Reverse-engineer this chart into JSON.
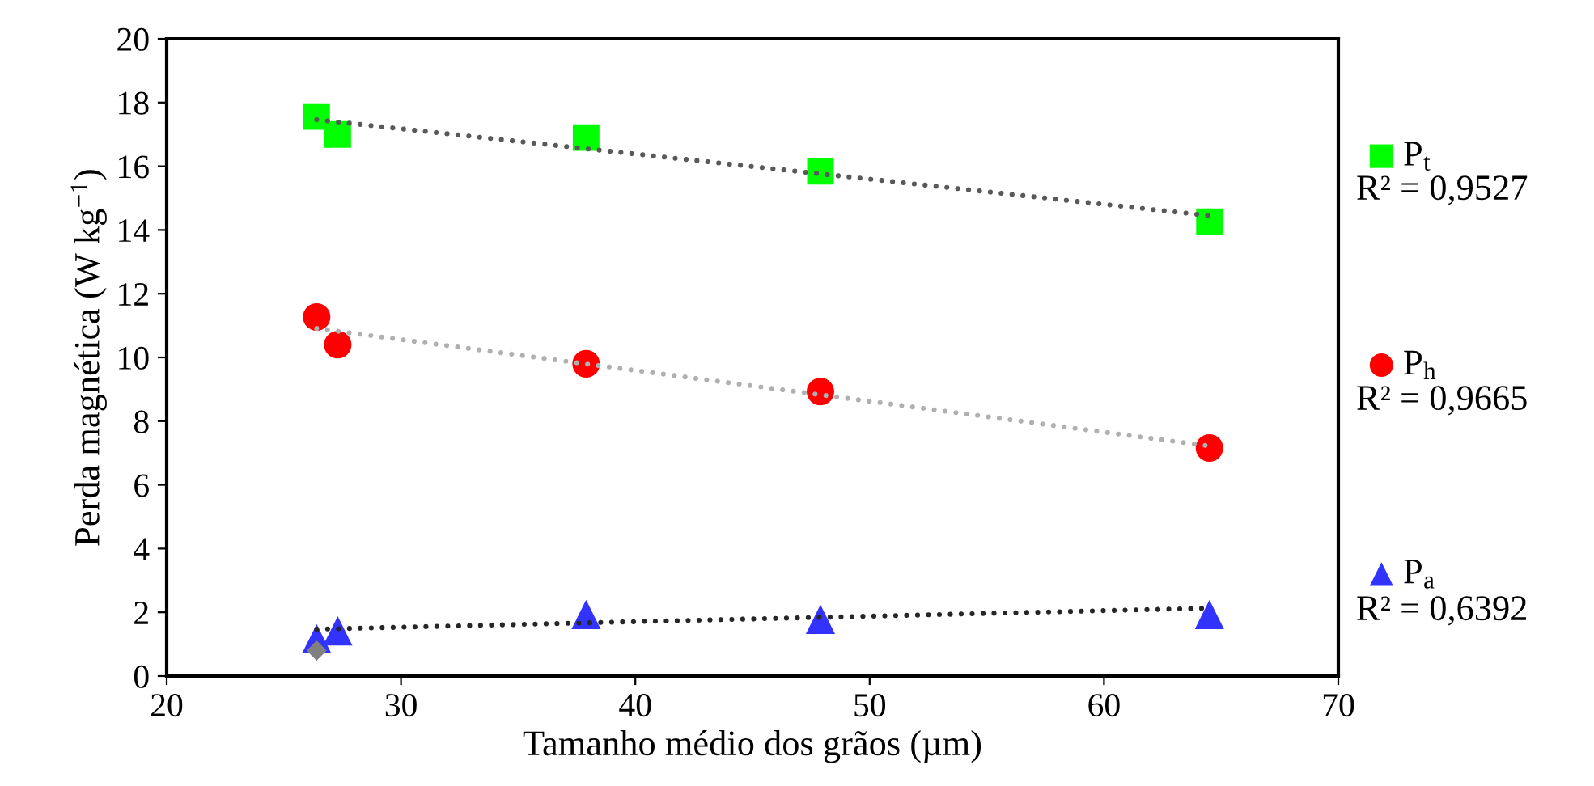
{
  "chart_data": {
    "type": "scatter",
    "xlabel": "Tamanho médio dos grãos (µm)",
    "ylabel": "Perda magnética (W kg$^{−1}$)",
    "xlim": [
      20,
      70
    ],
    "xticks": [
      20,
      30,
      40,
      50,
      60,
      70
    ],
    "ylim": [
      0,
      20
    ],
    "yticks": [
      0,
      2,
      4,
      6,
      8,
      10,
      12,
      14,
      16,
      18,
      20
    ],
    "grid": false,
    "legend": "right",
    "series": [
      {
        "name": "P$_{t}$",
        "color": "#00ff00",
        "marker": "square",
        "x": [
          26.4,
          27.3,
          37.9,
          47.9,
          64.5
        ],
        "values": [
          17.56,
          17.0,
          16.9,
          15.84,
          14.26
        ]
      },
      {
        "name": "P$_{h}$",
        "color": "#ff0000",
        "marker": "circle",
        "x": [
          26.4,
          27.3,
          37.9,
          47.9,
          64.5
        ],
        "values": [
          11.27,
          10.4,
          9.8,
          8.93,
          7.16
        ]
      },
      {
        "name": "P$_{a}$",
        "color": "#3333ff",
        "marker": "triangle",
        "x": [
          26.4,
          27.3,
          37.9,
          47.9,
          64.5
        ],
        "values": [
          1.17,
          1.42,
          1.93,
          1.78,
          1.93
        ]
      },
      {
        "color": "#808080",
        "marker": "diamond",
        "x": [
          26.4
        ],
        "values": [
          0.8
        ]
      },
      {
        "type": "line",
        "color": "#595959",
        "line_style": "dotted",
        "marker": "none",
        "x": [
          26.4,
          64.5
        ],
        "values": [
          17.46,
          14.45
        ]
      },
      {
        "type": "line",
        "color": "#b0b0b0",
        "line_style": "dotted",
        "marker": "none",
        "x": [
          26.4,
          64.5
        ],
        "values": [
          10.91,
          7.22
        ]
      },
      {
        "type": "line",
        "color": "#262626",
        "line_style": "dotted",
        "marker": "none",
        "x": [
          26.4,
          64.5
        ],
        "values": [
          1.47,
          2.13
        ]
      }
    ],
    "annotations": [
      "R² = 0,9527",
      "R² = 0,9665",
      "R² = 0,6392"
    ]
  }
}
